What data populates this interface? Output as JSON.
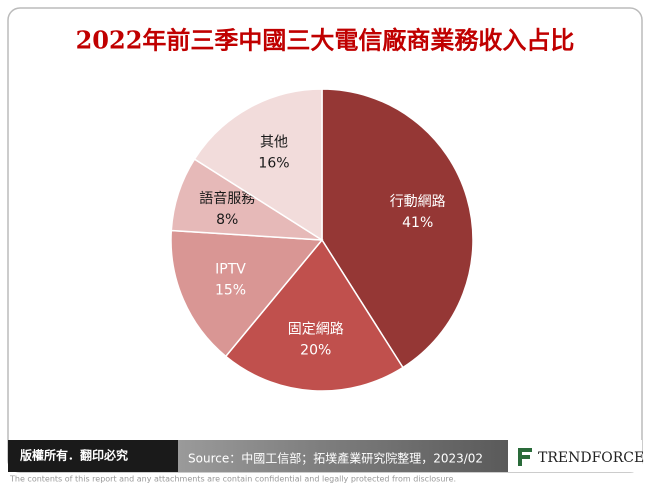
{
  "chart_data": {
    "type": "pie",
    "title": "2022年前三季中國三大電信廠商業務收入占比",
    "categories": [
      "行動網路",
      "固定網路",
      "IPTV",
      "語音服務",
      "其他"
    ],
    "values": [
      41,
      20,
      15,
      8,
      16
    ],
    "value_labels": [
      "41%",
      "20%",
      "15%",
      "8%",
      "16%"
    ],
    "colors": [
      "#953735",
      "#c0504d",
      "#d99694",
      "#e6b9b8",
      "#f2dcdb"
    ],
    "label_colors": [
      "#ffffff",
      "#ffffff",
      "#ffffff",
      "#1a1a1a",
      "#1a1a1a"
    ]
  },
  "footer": {
    "copyright": "版權所有．翻印必究",
    "source": "Source：中國工信部；拓墣產業研究院整理，2023/02",
    "logo": "TRENDFORCE",
    "disclaimer": "The contents of this report and any attachments are contain confidential and legally protected from disclosure."
  }
}
